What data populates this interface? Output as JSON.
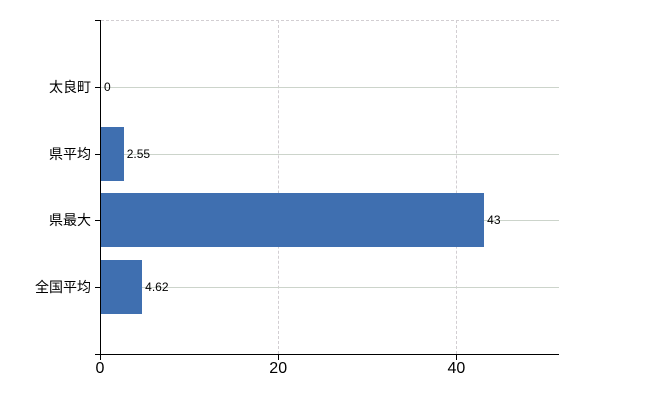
{
  "chart_data": {
    "type": "bar",
    "orientation": "horizontal",
    "title": "",
    "xlabel": "",
    "ylabel": "",
    "categories": [
      "太良町",
      "県平均",
      "県最大",
      "全国平均"
    ],
    "values": [
      0,
      2.55,
      43,
      4.62
    ],
    "value_labels": [
      "0",
      "2.55",
      "43",
      "4.62"
    ],
    "xticks": [
      0,
      20,
      40
    ],
    "xtick_labels": [
      "0",
      "20",
      "40"
    ],
    "xlim": [
      0,
      51.4
    ],
    "grid": true,
    "legend": false,
    "gridline_style": {
      "horizontal": "solid",
      "vertical": "dashed",
      "top_border": "dashed"
    }
  },
  "colors": {
    "bar": "#3f6fb0",
    "axis": "#000000",
    "text": "#000000",
    "horizontal_grid": "#ccd4cb",
    "vertical_grid": "#d2ced2",
    "background": "#ffffff"
  }
}
